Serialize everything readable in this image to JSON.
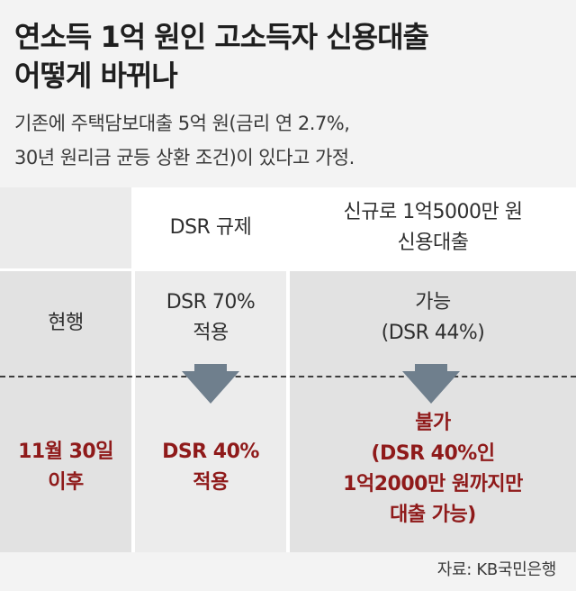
{
  "title_lines": [
    "연소득 1억 원인 고소득자 신용대출",
    "어떻게 바뀌나"
  ],
  "subtitle_lines": [
    "기존에 주택담보대출 5억 원(금리 연 2.7%,",
    "30년 원리금 균등 상환 조건)이 있다고 가정."
  ],
  "header": {
    "col2": "DSR 규제",
    "col3_lines": [
      "신규로 1억5000만 원",
      "신용대출"
    ]
  },
  "rows": [
    {
      "label": "현행",
      "dsr_lines": [
        "DSR 70%",
        "적용"
      ],
      "loan_lines": [
        "가능",
        "(DSR 44%)"
      ]
    },
    {
      "label_lines": [
        "11월 30일",
        "이후"
      ],
      "dsr_lines": [
        "DSR 40%",
        "적용"
      ],
      "loan_lines": [
        "불가",
        "(DSR 40%인",
        "1억2000만 원까지만",
        "대출 가능)"
      ]
    }
  ],
  "source": "자료: KB국민은행",
  "colors": {
    "highlight": "#8f1a1a",
    "arrow": "#6f7f8d",
    "cell_dark": "#e2e2e2",
    "cell_light": "#ececec"
  },
  "icons": [
    "down-arrow-icon"
  ]
}
